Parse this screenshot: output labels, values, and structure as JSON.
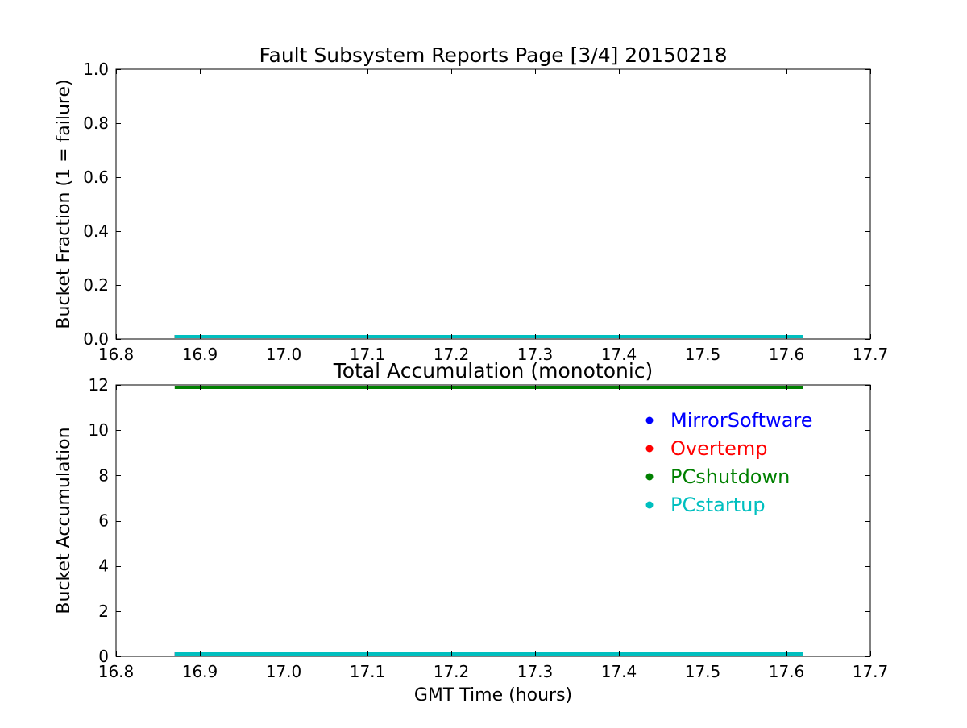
{
  "figure": {
    "background": "#ffffff",
    "frame_color": "#000000",
    "text_color": "#000000"
  },
  "chart_data": [
    {
      "type": "line",
      "title": "Fault Subsystem Reports Page [3/4] 20150218",
      "xlabel": "",
      "ylabel": "Bucket Fraction (1 = failure)",
      "xlim": [
        16.8,
        17.7
      ],
      "ylim": [
        0.0,
        1.0
      ],
      "xticks": [
        16.8,
        16.9,
        17.0,
        17.1,
        17.2,
        17.3,
        17.4,
        17.5,
        17.6,
        17.7
      ],
      "xtick_labels": [
        "16.8",
        "16.9",
        "17.0",
        "17.1",
        "17.2",
        "17.3",
        "17.4",
        "17.5",
        "17.6",
        "17.7"
      ],
      "yticks": [
        0.0,
        0.2,
        0.4,
        0.6,
        0.8,
        1.0
      ],
      "ytick_labels": [
        "0.0",
        "0.2",
        "0.4",
        "0.6",
        "0.8",
        "1.0"
      ],
      "grid": false,
      "legend": null,
      "series": [
        {
          "name": "MirrorSoftware",
          "color": "#0000ff",
          "x": [
            16.87,
            17.62
          ],
          "y": [
            0.0,
            0.0
          ]
        },
        {
          "name": "Overtemp",
          "color": "#ff0000",
          "x": [
            16.87,
            17.62
          ],
          "y": [
            0.0,
            0.0
          ]
        },
        {
          "name": "PCshutdown",
          "color": "#008000",
          "x": [
            16.87,
            17.62
          ],
          "y": [
            0.0,
            0.0
          ]
        },
        {
          "name": "PCstartup",
          "color": "#00bfbf",
          "x": [
            16.87,
            17.62
          ],
          "y": [
            0.0,
            0.0
          ]
        }
      ]
    },
    {
      "type": "line",
      "title": "Total Accumulation (monotonic)",
      "xlabel": "GMT Time (hours)",
      "ylabel": "Bucket Accumulation",
      "xlim": [
        16.8,
        17.7
      ],
      "ylim": [
        0,
        12
      ],
      "xticks": [
        16.8,
        16.9,
        17.0,
        17.1,
        17.2,
        17.3,
        17.4,
        17.5,
        17.6,
        17.7
      ],
      "xtick_labels": [
        "16.8",
        "16.9",
        "17.0",
        "17.1",
        "17.2",
        "17.3",
        "17.4",
        "17.5",
        "17.6",
        "17.7"
      ],
      "yticks": [
        0,
        2,
        4,
        6,
        8,
        10,
        12
      ],
      "ytick_labels": [
        "0",
        "2",
        "4",
        "6",
        "8",
        "10",
        "12"
      ],
      "grid": false,
      "legend": {
        "position": "upper right",
        "frame": false,
        "entries": [
          {
            "label": "MirrorSoftware",
            "color": "#0000ff"
          },
          {
            "label": "Overtemp",
            "color": "#ff0000"
          },
          {
            "label": "PCshutdown",
            "color": "#008000"
          },
          {
            "label": "PCstartup",
            "color": "#00bfbf"
          }
        ]
      },
      "series": [
        {
          "name": "MirrorSoftware",
          "color": "#0000ff",
          "x": [
            16.87,
            17.62
          ],
          "y": [
            0.0,
            0.0
          ]
        },
        {
          "name": "Overtemp",
          "color": "#ff0000",
          "x": [
            16.87,
            17.62
          ],
          "y": [
            0.0,
            0.0
          ]
        },
        {
          "name": "PCshutdown",
          "color": "#008000",
          "x": [
            16.87,
            17.62
          ],
          "y": [
            11.9,
            11.9
          ]
        },
        {
          "name": "PCstartup",
          "color": "#00bfbf",
          "x": [
            16.87,
            17.62
          ],
          "y": [
            0.05,
            0.05
          ]
        }
      ]
    }
  ]
}
